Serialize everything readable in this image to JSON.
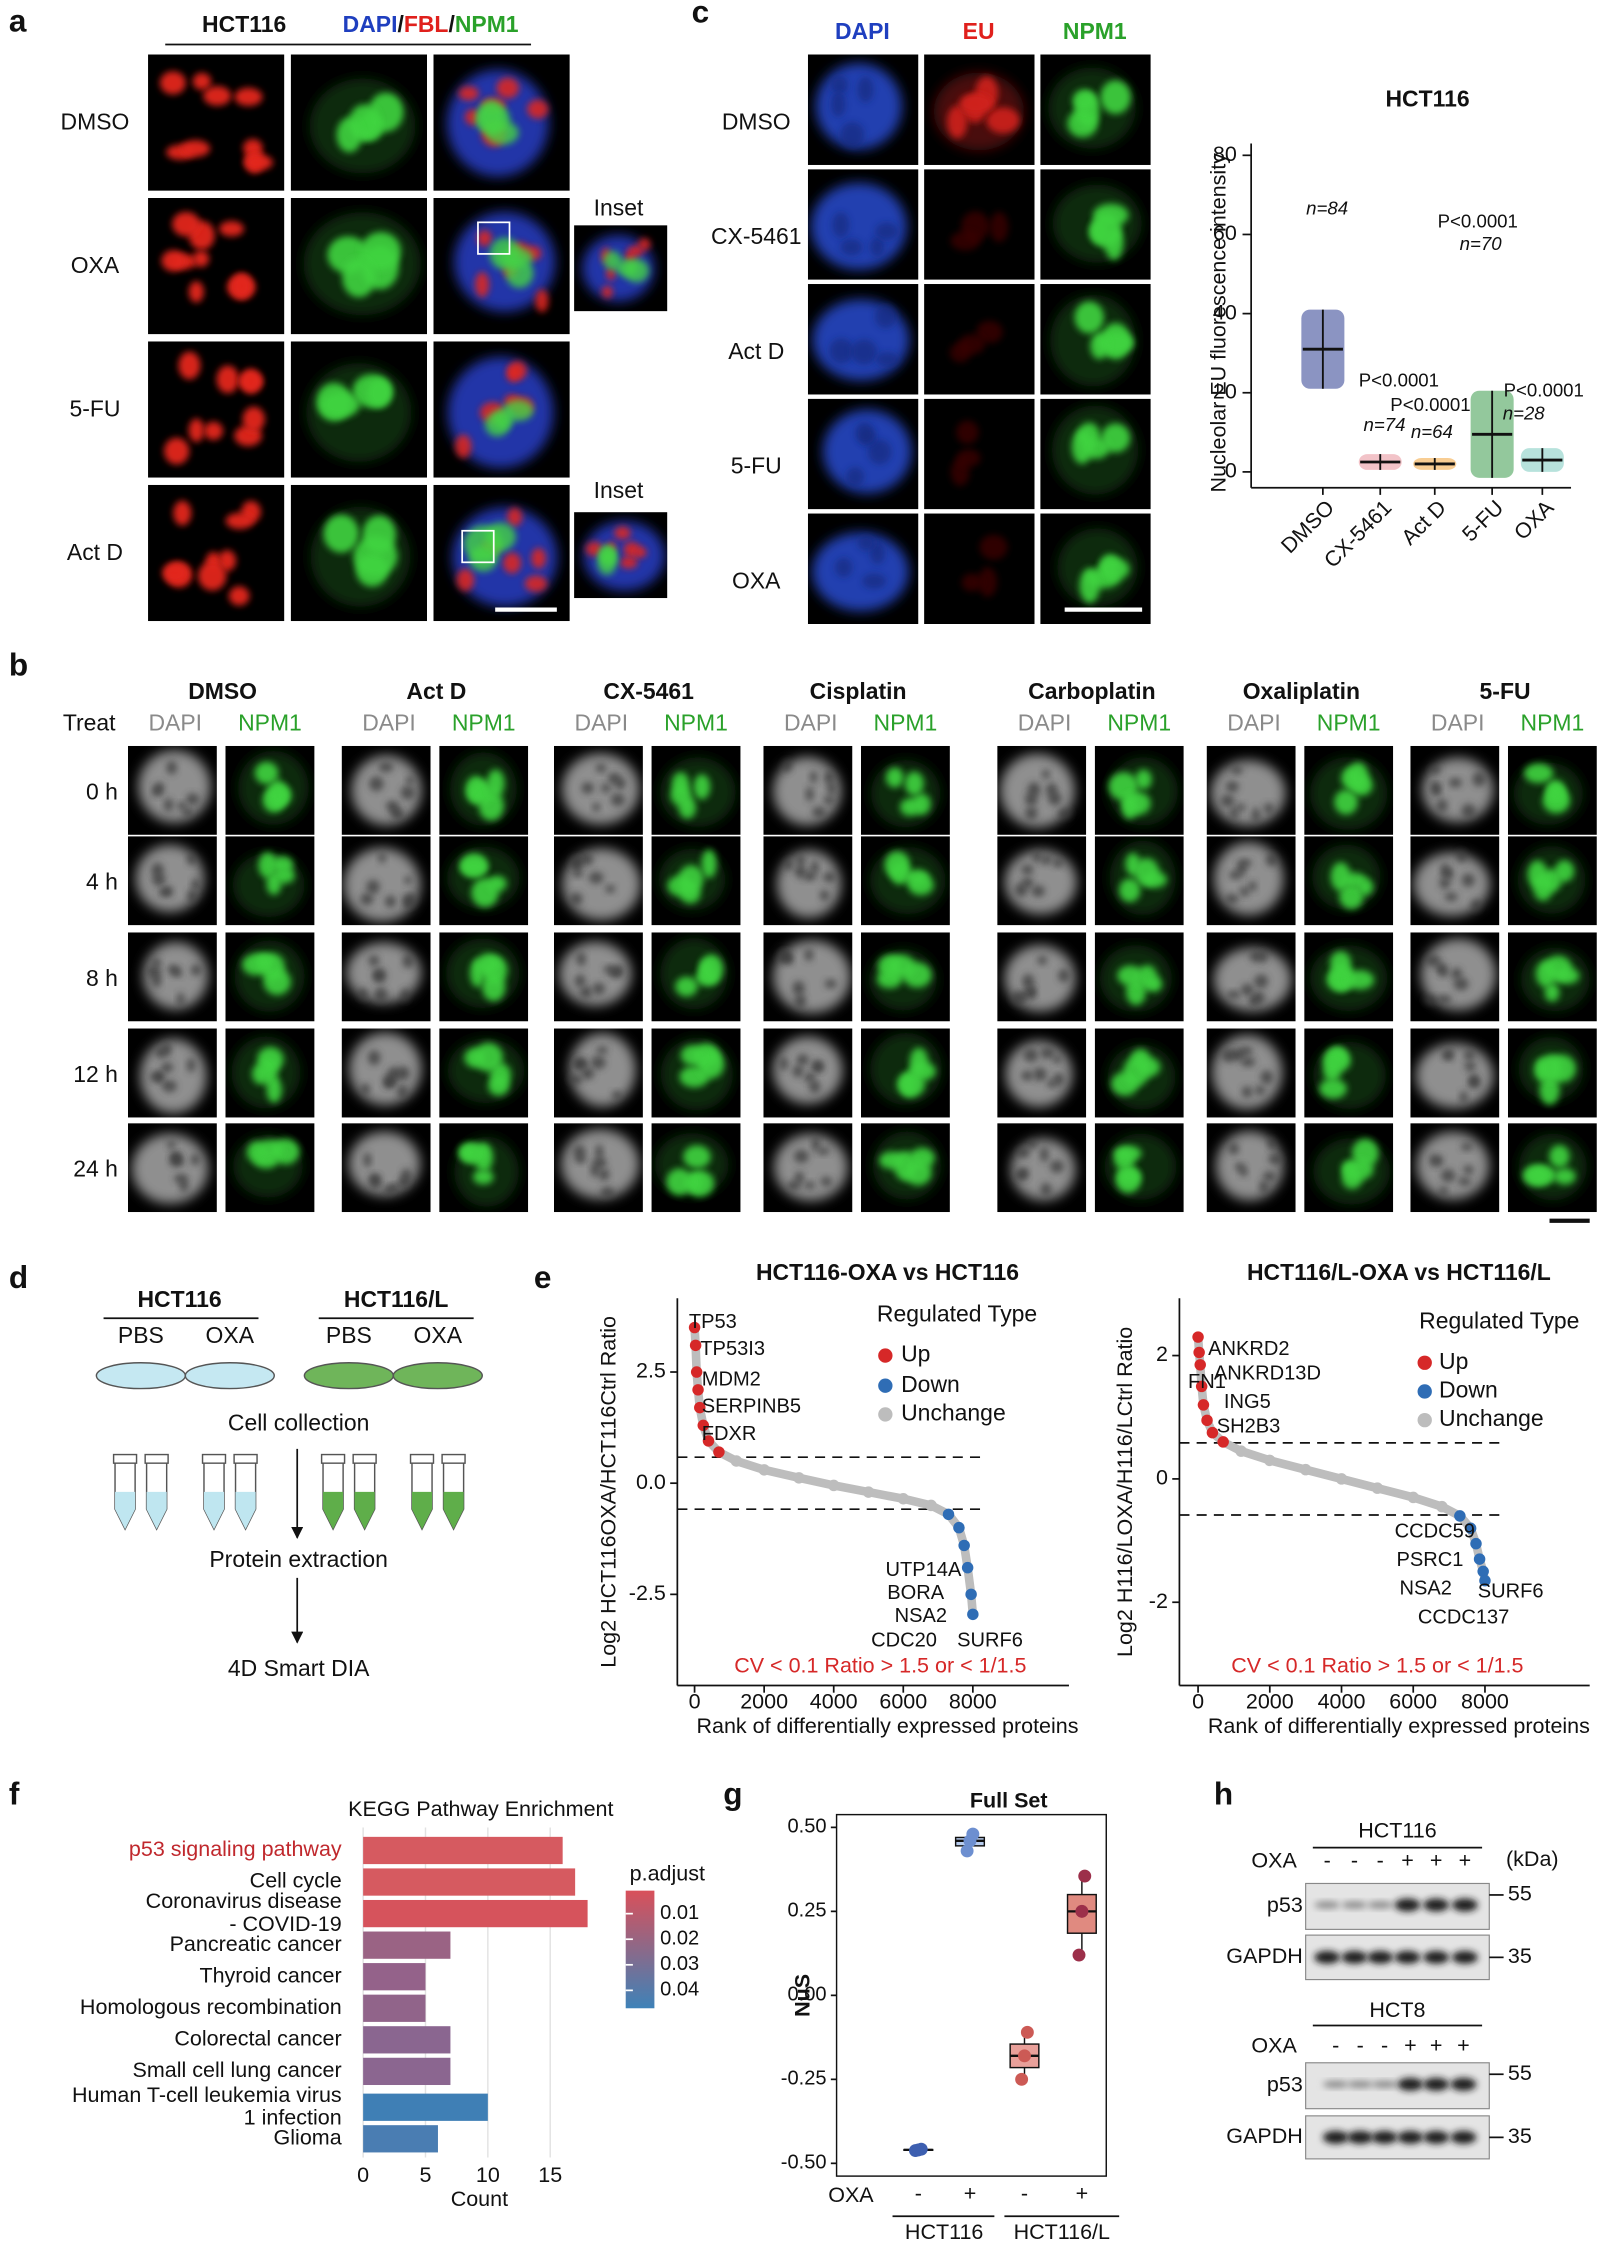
{
  "panel_a": {
    "letter": "a",
    "cell_line": "HCT116",
    "channels": [
      "DAPI",
      "FBL",
      "NPM1"
    ],
    "separator": "/",
    "channel_colors": [
      "#1f3fbf",
      "#e0201c",
      "#2aa12a"
    ],
    "rows": [
      "DMSO",
      "OXA",
      "5-FU",
      "Act D"
    ],
    "insets": [
      "Inset",
      "Inset"
    ]
  },
  "panel_b": {
    "letter": "b",
    "treat_label": "Treat",
    "treatments": [
      "DMSO",
      "Act D",
      "CX-5461",
      "Cisplatin",
      "Carboplatin",
      "Oxaliplatin",
      "5-FU"
    ],
    "channels": [
      "DAPI",
      "NPM1"
    ],
    "channel_colors": [
      "#8a8a8a",
      "#2aa12a"
    ],
    "times": [
      "0 h",
      "4 h",
      "8 h",
      "12 h",
      "24 h"
    ]
  },
  "panel_c": {
    "letter": "c",
    "channels": [
      "DAPI",
      "EU",
      "NPM1"
    ],
    "channel_colors": [
      "#1f3fbf",
      "#e0201c",
      "#2aa12a"
    ],
    "rows": [
      "DMSO",
      "CX-5461",
      "Act D",
      "5-FU",
      "OXA"
    ],
    "chart": {
      "type": "scatter",
      "title": "HCT116",
      "y_label": "Nucleolar EU fluorescence intensity",
      "categories": [
        "DMSO",
        "CX-5461",
        "Act D",
        "5-FU",
        "OXA"
      ],
      "means": [
        31,
        2.5,
        2,
        9.5,
        3
      ],
      "sd": [
        10,
        2,
        1.5,
        11,
        3
      ],
      "colors": [
        "#2b3d8f",
        "#e8919a",
        "#f2a43a",
        "#3a9a4a",
        "#7ccbbf"
      ],
      "n_labels": [
        "n=84",
        "n=74",
        "n=64",
        "n=70",
        "n=28"
      ],
      "p_labels": [
        null,
        "P<0.0001",
        "P<0.0001",
        "P<0.0001",
        "P<0.0001"
      ],
      "ylim": [
        -4,
        83
      ],
      "yticks": [
        0,
        20,
        40,
        60,
        80
      ]
    }
  },
  "panel_d": {
    "letter": "d",
    "groups": [
      "HCT116",
      "HCT116/L"
    ],
    "conditions": [
      "PBS",
      "OXA",
      "PBS",
      "OXA"
    ],
    "steps": [
      "Cell collection",
      "Protein extraction",
      "4D Smart DIA"
    ]
  },
  "panel_e": {
    "letter": "e",
    "charts": [
      {
        "type": "scatter",
        "title": "HCT116-OXA vs HCT116",
        "y_label": "Log2 HCT116OXA/HCT116Ctrl Ratio",
        "x_label": "Rank of differentially expressed proteins",
        "legend_title": "Regulated Type",
        "legend": [
          "Up",
          "Down",
          "Unchange"
        ],
        "legend_colors": [
          "#d62828",
          "#2f6db5",
          "#bdbdbd"
        ],
        "thresholds": [
          0.585,
          -0.585
        ],
        "x": [
          0,
          30,
          60,
          100,
          150,
          250,
          400,
          700,
          1200,
          2000,
          3000,
          4000,
          5000,
          6000,
          6800,
          7300,
          7600,
          7750,
          7850,
          7950,
          8000
        ],
        "y": [
          3.5,
          3.1,
          2.5,
          2.1,
          1.7,
          1.3,
          0.95,
          0.7,
          0.5,
          0.3,
          0.12,
          -0.05,
          -0.2,
          -0.35,
          -0.5,
          -0.7,
          -1.0,
          -1.4,
          -1.9,
          -2.5,
          -2.95
        ],
        "up_genes": [
          "TP53",
          "TP53I3",
          "MDM2",
          "SERPINB5",
          "FDXR"
        ],
        "down_genes": [
          "UTP14A",
          "BORA",
          "NSA2",
          "CDC20",
          "SURF6"
        ],
        "note": "CV < 0.1 Ratio > 1.5 or < 1/1.5",
        "xlim": [
          -495,
          10763
        ],
        "ylim": [
          -4.55,
          4.16
        ],
        "xticks": [
          0,
          2000,
          4000,
          6000,
          8000
        ],
        "yticks": [
          2.5,
          {
            "value": 0,
            "label": "0.0"
          },
          -2.5
        ]
      },
      {
        "type": "scatter",
        "title": "HCT116/L-OXA vs HCT116/L",
        "y_label": "Log2 H116/LOXA/H116/LCtrl Ratio",
        "x_label": "Rank of differentially expressed proteins",
        "legend_title": "Regulated Type",
        "legend": [
          "Up",
          "Down",
          "Unchange"
        ],
        "legend_colors": [
          "#d62828",
          "#2f6db5",
          "#bdbdbd"
        ],
        "thresholds": [
          0.585,
          -0.585
        ],
        "x": [
          0,
          30,
          60,
          100,
          150,
          250,
          400,
          700,
          1200,
          2000,
          3000,
          4000,
          5000,
          6000,
          6800,
          7300,
          7600,
          7750,
          7850,
          7950,
          8000
        ],
        "y": [
          2.3,
          2.05,
          1.85,
          1.5,
          1.2,
          0.95,
          0.75,
          0.6,
          0.45,
          0.3,
          0.15,
          0,
          -0.15,
          -0.3,
          -0.45,
          -0.6,
          -0.8,
          -1.05,
          -1.3,
          -1.5,
          -1.65
        ],
        "up_genes": [
          "ANKRD2",
          "ANKRD13D",
          "FN1",
          "ING5",
          "SH2B3"
        ],
        "down_genes": [
          "CCDC59",
          "PSRC1",
          "NSA2",
          "SURF6",
          "CCDC137"
        ],
        "note": "CV < 0.1 Ratio > 1.5 or < 1/1.5",
        "xlim": [
          -520,
          10920
        ],
        "ylim": [
          -3.35,
          2.93
        ],
        "xticks": [
          0,
          2000,
          4000,
          6000,
          8000
        ],
        "yticks": [
          2,
          0,
          -2
        ]
      }
    ]
  },
  "panel_f": {
    "letter": "f",
    "chart": {
      "type": "bar",
      "title": "KEGG Pathway Enrichment",
      "categories": [
        "p53 signaling pathway",
        "Cell cycle",
        "Coronavirus disease\n- COVID-19",
        "Pancreatic cancer",
        "Thyroid cancer",
        "Homologous recombination",
        "Colorectal cancer",
        "Small cell lung cancer",
        "Human T-cell leukemia virus\n1 infection",
        "Glioma"
      ],
      "values": [
        16,
        17,
        18,
        7,
        5,
        5,
        7,
        7,
        10,
        6
      ],
      "colors": [
        "#d65a60",
        "#d65a60",
        "#d6535c",
        "#9a6384",
        "#94628a",
        "#91648a",
        "#8a6690",
        "#8b6690",
        "#3f7fb5",
        "#4a7db2"
      ],
      "highlight_index": 0,
      "highlight_color": "#c0282d",
      "x_label": "Count",
      "xlim": [
        -0.8,
        19.1
      ],
      "xticks": [
        0,
        5,
        10,
        15
      ],
      "legend_title": "p.adjust",
      "legend_ticks": [
        0.01,
        0.02,
        0.03,
        0.04
      ],
      "legend_lim": [
        0.001,
        0.047
      ],
      "legend_colors": [
        "#d9505a",
        "#3e82b8"
      ]
    }
  },
  "panel_g": {
    "letter": "g",
    "chart": {
      "type": "box",
      "title": "Full Set",
      "y_label": "NuS",
      "row_label": "OXA",
      "oxa": [
        "-",
        "+",
        "-",
        "+"
      ],
      "groups": [
        "HCT116",
        "HCT116/L"
      ],
      "boxes": [
        {
          "min": -0.462,
          "q1": -0.461,
          "median": -0.46,
          "q3": -0.459,
          "max": -0.458,
          "points": [
            -0.462,
            -0.46,
            -0.458
          ]
        },
        {
          "min": 0.43,
          "q1": 0.445,
          "median": 0.46,
          "q3": 0.47,
          "max": 0.48,
          "points": [
            0.43,
            0.46,
            0.48
          ]
        },
        {
          "min": -0.25,
          "q1": -0.215,
          "median": -0.18,
          "q3": -0.145,
          "max": -0.11,
          "points": [
            -0.25,
            -0.18,
            -0.11
          ]
        },
        {
          "min": 0.12,
          "q1": 0.185,
          "median": 0.25,
          "q3": 0.3,
          "max": 0.355,
          "points": [
            0.12,
            0.25,
            0.355
          ]
        }
      ],
      "colors": [
        "#3d5fb0",
        "#6d8fd0",
        "#cc5a55",
        "#9c2f4a"
      ],
      "fills": [
        "#a9c0e6",
        "#b8cdef",
        "#e8a09a",
        "#e08a80"
      ],
      "ylim": [
        -0.538,
        0.538
      ],
      "yticks": [
        {
          "value": 0.5,
          "label": "0.50"
        },
        {
          "value": 0.25,
          "label": "0.25"
        },
        {
          "value": 0,
          "label": "0.00"
        },
        {
          "value": -0.25,
          "label": "-0.25"
        },
        {
          "value": -0.5,
          "label": "-0.50"
        }
      ]
    }
  },
  "panel_h": {
    "letter": "h",
    "treatment_label": "OXA",
    "unit": "(kDa)",
    "blots": [
      {
        "cell_line": "HCT116",
        "oxa": [
          "-",
          "-",
          "-",
          "+",
          "+",
          "+"
        ],
        "proteins": [
          "p53",
          "GAPDH"
        ],
        "markers": [
          55,
          35
        ]
      },
      {
        "cell_line": "HCT8",
        "oxa": [
          "-",
          "-",
          "-",
          "+",
          "+",
          "+"
        ],
        "proteins": [
          "p53",
          "GAPDH"
        ],
        "markers": [
          55,
          35
        ]
      }
    ]
  }
}
